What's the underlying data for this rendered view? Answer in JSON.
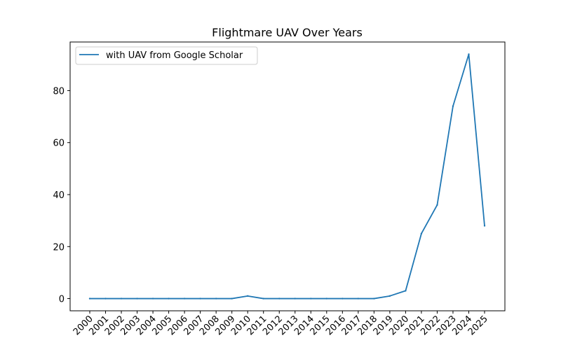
{
  "chart_data": {
    "type": "line",
    "title": "Flightmare UAV Over Years",
    "xlabel": "",
    "ylabel": "",
    "categories": [
      "2000",
      "2001",
      "2002",
      "2003",
      "2004",
      "2005",
      "2006",
      "2007",
      "2008",
      "2009",
      "2010",
      "2011",
      "2012",
      "2013",
      "2014",
      "2015",
      "2016",
      "2017",
      "2018",
      "2019",
      "2020",
      "2021",
      "2022",
      "2023",
      "2024",
      "2025"
    ],
    "series": [
      {
        "name": "with UAV from Google Scholar",
        "color": "#1f77b4",
        "values": [
          0,
          0,
          0,
          0,
          0,
          0,
          0,
          0,
          0,
          0,
          1,
          0,
          0,
          0,
          0,
          0,
          0,
          0,
          0,
          1,
          3,
          25,
          36,
          74,
          94,
          28
        ]
      }
    ],
    "ylim": [
      -4.7,
      98.7
    ],
    "yticks": [
      0,
      20,
      40,
      60,
      80
    ],
    "grid": false,
    "legend_position": "upper-left"
  }
}
